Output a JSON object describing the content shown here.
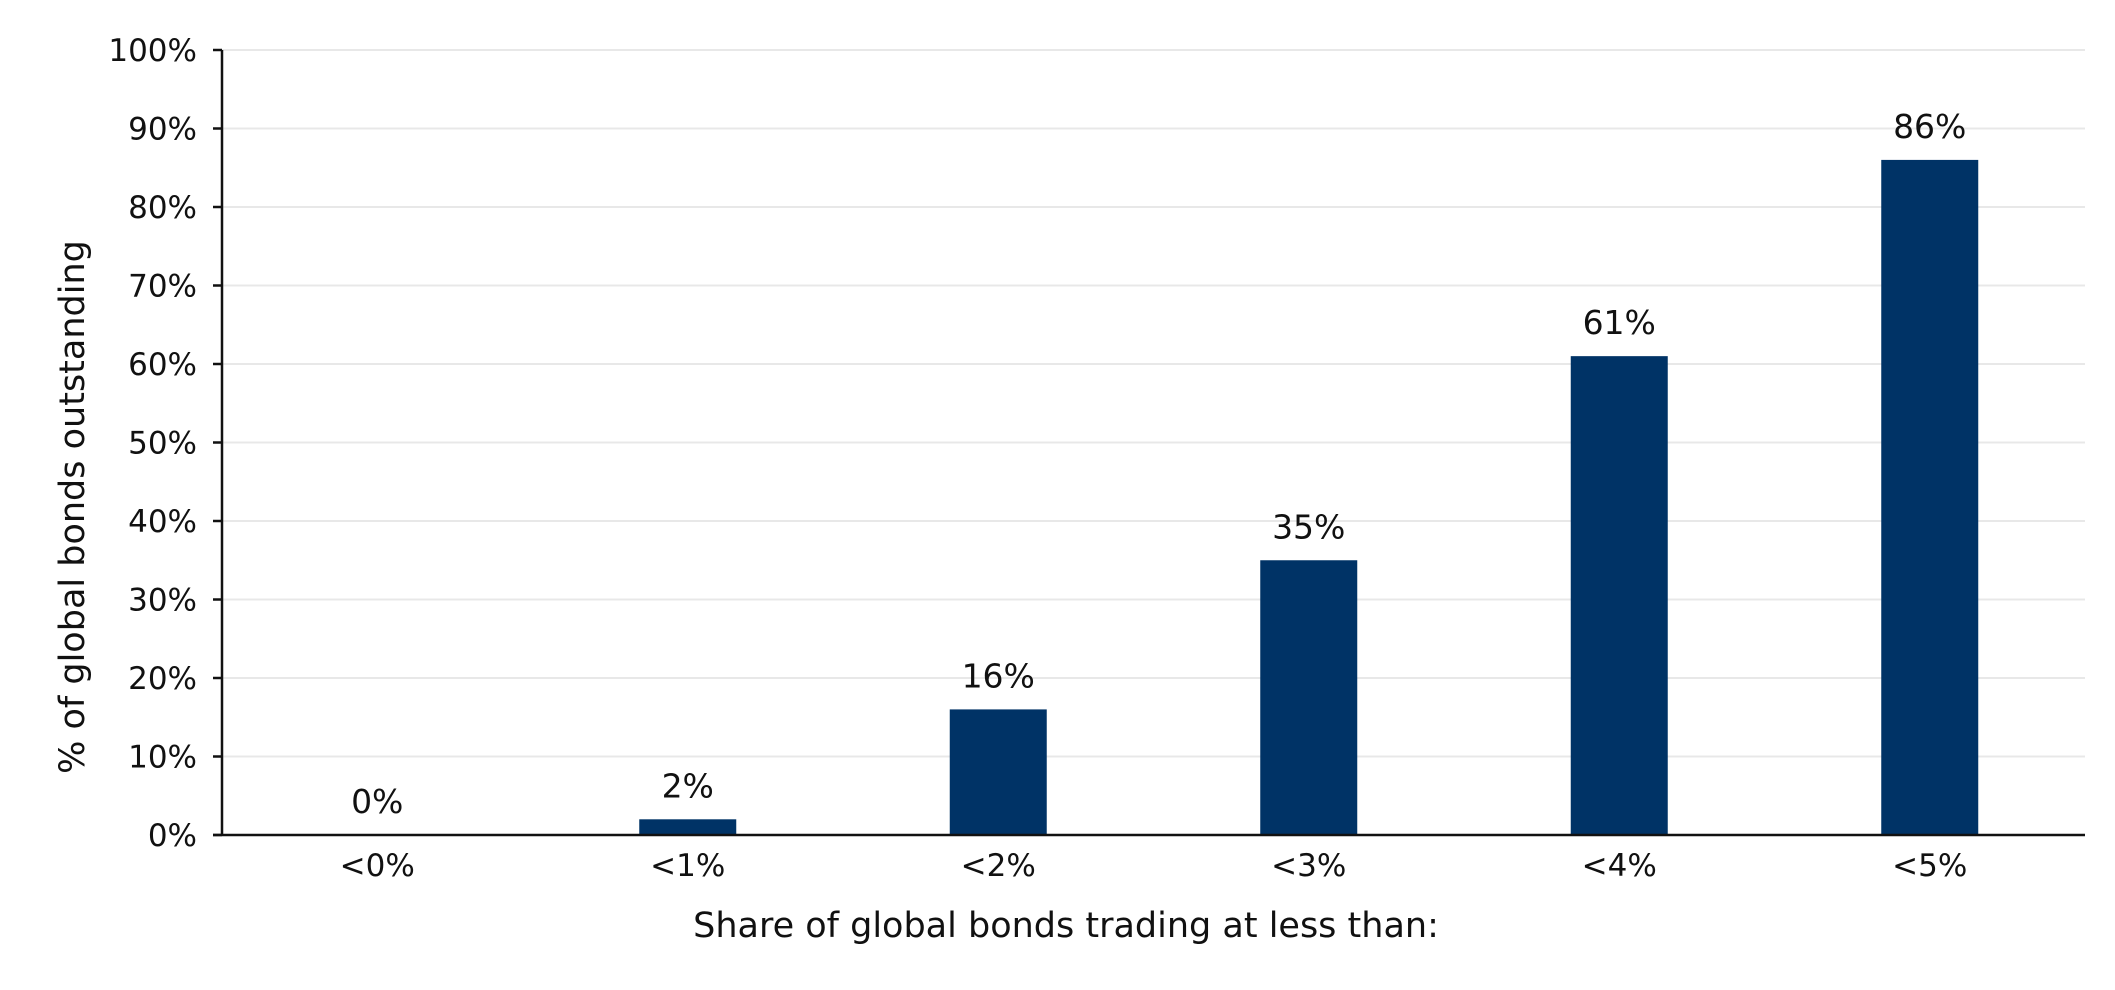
{
  "chart_data": {
    "type": "bar",
    "categories": [
      "<0%",
      "<1%",
      "<2%",
      "<3%",
      "<4%",
      "<5%"
    ],
    "values": [
      0,
      2,
      16,
      35,
      61,
      86
    ],
    "data_labels": [
      "0%",
      "2%",
      "16%",
      "35%",
      "61%",
      "86%"
    ],
    "title": "",
    "xlabel": "Share of global bonds trading at less than:",
    "ylabel": "% of global bonds outstanding",
    "ylim": [
      0,
      100
    ],
    "y_ticks": [
      0,
      10,
      20,
      30,
      40,
      50,
      60,
      70,
      80,
      90,
      100
    ],
    "y_tick_labels": [
      "0%",
      "10%",
      "20%",
      "30%",
      "40%",
      "50%",
      "60%",
      "70%",
      "80%",
      "90%",
      "100%"
    ],
    "grid": true,
    "legend": "none",
    "bar_color": "#003366",
    "grid_color": "#e8e8e8"
  }
}
